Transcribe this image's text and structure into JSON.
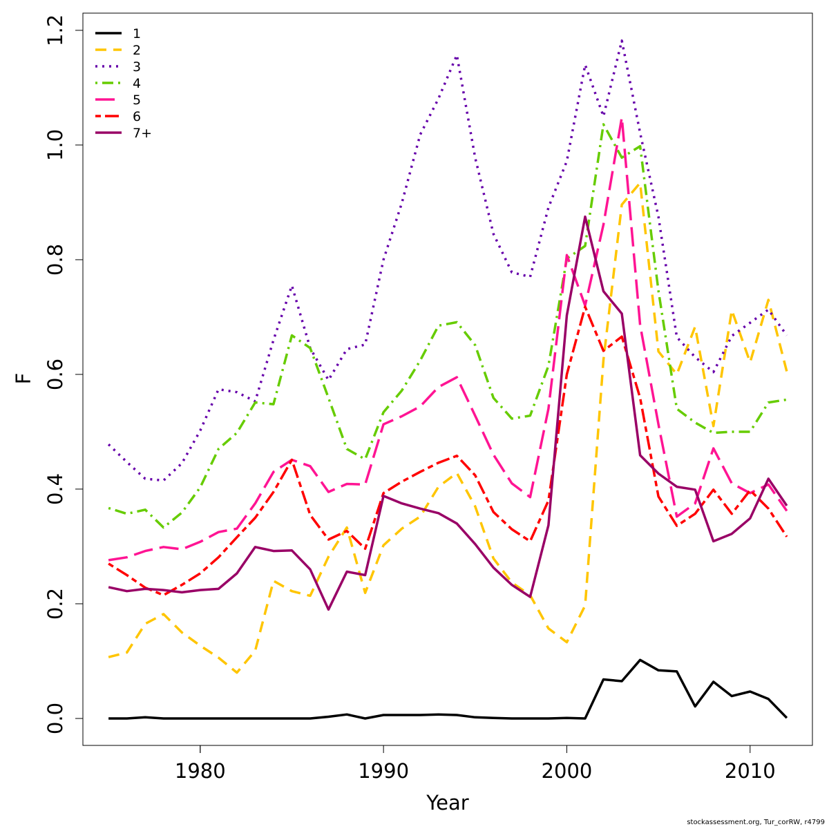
{
  "chart_data": {
    "type": "line",
    "xlabel": "Year",
    "ylabel": "F",
    "xlim": [
      1973.6,
      2013.4
    ],
    "ylim": [
      -0.047,
      1.23
    ],
    "x_ticks": [
      1980,
      1990,
      2000,
      2010
    ],
    "y_ticks": [
      0.0,
      0.2,
      0.4,
      0.6,
      0.8,
      1.0,
      1.2
    ],
    "x_tick_labels": [
      "1980",
      "1990",
      "2000",
      "2010"
    ],
    "y_tick_labels": [
      "0.0",
      "0.2",
      "0.4",
      "0.6",
      "0.8",
      "1.0",
      "1.2"
    ],
    "grid": false,
    "legend_position": "top-left",
    "x": [
      1975,
      1976,
      1977,
      1978,
      1979,
      1980,
      1981,
      1982,
      1983,
      1984,
      1985,
      1986,
      1987,
      1988,
      1989,
      1990,
      1991,
      1992,
      1993,
      1994,
      1995,
      1996,
      1997,
      1998,
      1999,
      2000,
      2001,
      2002,
      2003,
      2004,
      2005,
      2006,
      2007,
      2008,
      2009,
      2010,
      2011,
      2012
    ],
    "series": [
      {
        "name": "1",
        "color": "#000000",
        "dash": "solid",
        "values": [
          0.0,
          0.0,
          0.002,
          0.0,
          0.0,
          0.0,
          0.0,
          0.0,
          0.0,
          0.0,
          0.0,
          0.0,
          0.003,
          0.007,
          0.0,
          0.006,
          0.006,
          0.006,
          0.007,
          0.006,
          0.002,
          0.001,
          0.0,
          0.0,
          0.0,
          0.001,
          0.0,
          0.068,
          0.065,
          0.102,
          0.084,
          0.082,
          0.021,
          0.064,
          0.039,
          0.047,
          0.034,
          0.001
        ]
      },
      {
        "name": "2",
        "color": "#ffc500",
        "dash": "dashed",
        "values": [
          0.107,
          0.115,
          0.165,
          0.182,
          0.15,
          0.127,
          0.106,
          0.08,
          0.118,
          0.24,
          0.222,
          0.214,
          0.282,
          0.333,
          0.219,
          0.302,
          0.331,
          0.352,
          0.404,
          0.428,
          0.37,
          0.279,
          0.237,
          0.215,
          0.157,
          0.133,
          0.197,
          0.625,
          0.896,
          0.934,
          0.64,
          0.6,
          0.683,
          0.51,
          0.712,
          0.621,
          0.73,
          0.605
        ]
      },
      {
        "name": "3",
        "color": "#6600aa",
        "dash": "dotted",
        "values": [
          0.478,
          0.447,
          0.418,
          0.415,
          0.445,
          0.502,
          0.574,
          0.569,
          0.553,
          0.66,
          0.755,
          0.646,
          0.59,
          0.644,
          0.652,
          0.8,
          0.899,
          1.018,
          1.081,
          1.157,
          0.978,
          0.845,
          0.778,
          0.77,
          0.891,
          0.972,
          1.14,
          1.05,
          1.182,
          1.021,
          0.875,
          0.665,
          0.63,
          0.604,
          0.667,
          0.69,
          0.713,
          0.668
        ]
      },
      {
        "name": "4",
        "color": "#66cc00",
        "dash": "dotdash",
        "values": [
          0.367,
          0.357,
          0.364,
          0.333,
          0.359,
          0.403,
          0.47,
          0.498,
          0.551,
          0.548,
          0.668,
          0.646,
          0.559,
          0.47,
          0.452,
          0.534,
          0.572,
          0.624,
          0.685,
          0.691,
          0.651,
          0.559,
          0.523,
          0.528,
          0.615,
          0.802,
          0.824,
          1.036,
          0.978,
          0.998,
          0.746,
          0.54,
          0.516,
          0.498,
          0.5,
          0.5,
          0.551,
          0.556
        ]
      },
      {
        "name": "5",
        "color": "#ff1493",
        "dash": "longdash",
        "values": [
          0.276,
          0.281,
          0.292,
          0.299,
          0.295,
          0.308,
          0.325,
          0.331,
          0.375,
          0.43,
          0.451,
          0.44,
          0.395,
          0.409,
          0.408,
          0.513,
          0.527,
          0.544,
          0.578,
          0.595,
          0.528,
          0.46,
          0.41,
          0.386,
          0.54,
          0.808,
          0.72,
          0.861,
          1.048,
          0.686,
          0.513,
          0.352,
          0.375,
          0.471,
          0.41,
          0.393,
          0.408,
          0.362
        ]
      },
      {
        "name": "6",
        "color": "#ff0000",
        "dash": "twodash",
        "values": [
          0.27,
          0.25,
          0.228,
          0.215,
          0.233,
          0.253,
          0.281,
          0.316,
          0.35,
          0.395,
          0.451,
          0.355,
          0.312,
          0.327,
          0.296,
          0.393,
          0.413,
          0.43,
          0.446,
          0.458,
          0.424,
          0.36,
          0.33,
          0.309,
          0.38,
          0.6,
          0.718,
          0.641,
          0.666,
          0.559,
          0.387,
          0.336,
          0.357,
          0.399,
          0.357,
          0.398,
          0.366,
          0.317
        ]
      },
      {
        "name": "7+",
        "color": "#990066",
        "dash": "solid",
        "values": [
          0.229,
          0.222,
          0.226,
          0.224,
          0.22,
          0.224,
          0.226,
          0.253,
          0.299,
          0.292,
          0.293,
          0.26,
          0.19,
          0.256,
          0.25,
          0.388,
          0.375,
          0.366,
          0.358,
          0.34,
          0.304,
          0.263,
          0.233,
          0.212,
          0.337,
          0.703,
          0.875,
          0.745,
          0.706,
          0.459,
          0.427,
          0.404,
          0.399,
          0.309,
          0.322,
          0.349,
          0.418,
          0.371
        ]
      }
    ]
  },
  "footer_text": "stockassessment.org, Tur_corRW, r4799"
}
